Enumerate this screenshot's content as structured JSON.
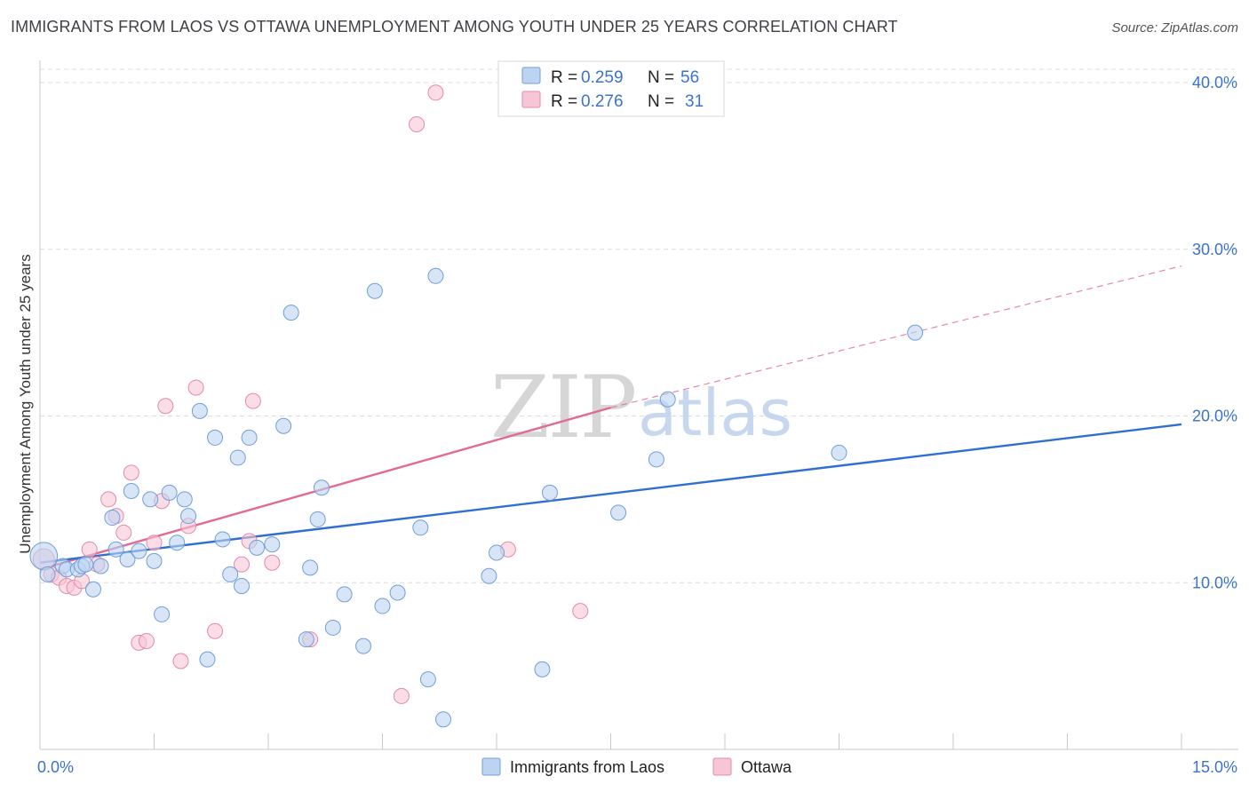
{
  "header": {
    "title": "IMMIGRANTS FROM LAOS VS OTTAWA UNEMPLOYMENT AMONG YOUTH UNDER 25 YEARS CORRELATION CHART",
    "source": "Source: ZipAtlas.com"
  },
  "watermark": {
    "zip": "ZIP",
    "atlas": "atlas"
  },
  "legend": {
    "r_label": "R =",
    "n_label": "N =",
    "series1": {
      "r": "0.259",
      "n": "56"
    },
    "series2": {
      "r": "0.276",
      "n": "31"
    }
  },
  "bottom_legend": {
    "series1": "Immigrants from Laos",
    "series2": "Ottawa"
  },
  "colors": {
    "series1_fill": "#bcd4f2",
    "series1_stroke": "#6f9fd8",
    "series1_line": "#2f6fd0",
    "series2_fill": "#f7c6d6",
    "series2_stroke": "#e58aa8",
    "series2_line": "#e26a93",
    "axis_text": "#3b73c9",
    "grid": "#dcdcdc"
  },
  "chart_data": {
    "type": "scatter",
    "title": "IMMIGRANTS FROM LAOS VS OTTAWA UNEMPLOYMENT AMONG YOUTH UNDER 25 YEARS CORRELATION CHART",
    "xlabel": "",
    "ylabel": "Unemployment Among Youth under 25 years",
    "xlim": [
      0,
      15
    ],
    "ylim": [
      0,
      40.8
    ],
    "x_ticks": [
      0,
      15
    ],
    "x_tick_labels": [
      "0.0%",
      "15.0%"
    ],
    "y_ticks": [
      10,
      20,
      30,
      40
    ],
    "y_tick_labels": [
      "10.0%",
      "20.0%",
      "30.0%",
      "40.0%"
    ],
    "grid": true,
    "legend_position": "top-center",
    "series": [
      {
        "name": "Immigrants from Laos",
        "r": 0.259,
        "n": 56,
        "trend": {
          "x0": 0,
          "y0": 11.2,
          "x1": 15,
          "y1": 19.5
        },
        "points": [
          [
            0.05,
            11.6,
            1.8
          ],
          [
            0.1,
            10.5,
            1
          ],
          [
            0.3,
            11.0,
            1
          ],
          [
            0.35,
            10.8,
            1
          ],
          [
            0.5,
            10.8,
            1
          ],
          [
            0.55,
            11.0,
            1
          ],
          [
            0.6,
            11.1,
            1
          ],
          [
            0.7,
            9.6,
            1
          ],
          [
            0.8,
            11.0,
            1
          ],
          [
            0.95,
            13.9,
            1
          ],
          [
            1.0,
            12.0,
            1
          ],
          [
            1.15,
            11.4,
            1
          ],
          [
            1.2,
            15.5,
            1
          ],
          [
            1.3,
            11.9,
            1
          ],
          [
            1.45,
            15.0,
            1
          ],
          [
            1.5,
            11.3,
            1
          ],
          [
            1.6,
            8.1,
            1
          ],
          [
            1.7,
            15.4,
            1
          ],
          [
            1.8,
            12.4,
            1
          ],
          [
            1.9,
            15.0,
            1
          ],
          [
            1.95,
            14.0,
            1
          ],
          [
            2.1,
            20.3,
            1
          ],
          [
            2.2,
            5.4,
            1
          ],
          [
            2.3,
            18.7,
            1
          ],
          [
            2.4,
            12.6,
            1
          ],
          [
            2.5,
            10.5,
            1
          ],
          [
            2.6,
            17.5,
            1
          ],
          [
            2.65,
            9.8,
            1
          ],
          [
            2.75,
            18.7,
            1
          ],
          [
            2.85,
            12.1,
            1
          ],
          [
            3.05,
            12.3,
            1
          ],
          [
            3.2,
            19.4,
            1
          ],
          [
            3.3,
            26.2,
            1
          ],
          [
            3.5,
            6.6,
            1
          ],
          [
            3.55,
            10.9,
            1
          ],
          [
            3.65,
            13.8,
            1
          ],
          [
            3.7,
            15.7,
            1
          ],
          [
            3.85,
            7.3,
            1
          ],
          [
            4.0,
            9.3,
            1
          ],
          [
            4.25,
            6.2,
            1
          ],
          [
            4.4,
            27.5,
            1
          ],
          [
            4.5,
            8.6,
            1
          ],
          [
            4.7,
            9.4,
            1
          ],
          [
            5.0,
            13.3,
            1
          ],
          [
            5.1,
            4.2,
            1
          ],
          [
            5.2,
            28.4,
            1
          ],
          [
            5.3,
            1.8,
            1
          ],
          [
            5.9,
            10.4,
            1
          ],
          [
            6.0,
            11.8,
            1
          ],
          [
            6.6,
            4.8,
            1
          ],
          [
            6.7,
            15.4,
            1
          ],
          [
            7.6,
            14.2,
            1
          ],
          [
            8.1,
            17.4,
            1
          ],
          [
            8.25,
            21.0,
            1
          ],
          [
            10.5,
            17.8,
            1
          ],
          [
            11.5,
            25.0,
            1
          ]
        ]
      },
      {
        "name": "Ottawa",
        "r": 0.276,
        "n": 31,
        "trend": {
          "x0": 0,
          "y0": 10.8,
          "x1": 7.5,
          "y1": 20.5
        },
        "trend_dashed": {
          "x0": 7.5,
          "y0": 20.5,
          "x1": 15,
          "y1": 29.0
        },
        "points": [
          [
            0.05,
            11.4,
            1.4
          ],
          [
            0.15,
            10.5,
            1
          ],
          [
            0.25,
            10.3,
            1
          ],
          [
            0.35,
            9.8,
            1
          ],
          [
            0.45,
            9.7,
            1
          ],
          [
            0.55,
            10.1,
            1
          ],
          [
            0.65,
            12.0,
            1
          ],
          [
            0.75,
            11.1,
            1
          ],
          [
            0.9,
            15.0,
            1
          ],
          [
            1.0,
            14.0,
            1
          ],
          [
            1.1,
            13.0,
            1
          ],
          [
            1.2,
            16.6,
            1
          ],
          [
            1.3,
            6.4,
            1
          ],
          [
            1.4,
            6.5,
            1
          ],
          [
            1.5,
            12.4,
            1
          ],
          [
            1.6,
            14.9,
            1
          ],
          [
            1.65,
            20.6,
            1
          ],
          [
            1.85,
            5.3,
            1
          ],
          [
            1.95,
            13.4,
            1
          ],
          [
            2.05,
            21.7,
            1
          ],
          [
            2.3,
            7.1,
            1
          ],
          [
            2.65,
            11.1,
            1
          ],
          [
            2.75,
            12.5,
            1
          ],
          [
            2.8,
            20.9,
            1
          ],
          [
            3.05,
            11.2,
            1
          ],
          [
            3.55,
            6.6,
            1
          ],
          [
            4.75,
            3.2,
            1
          ],
          [
            4.95,
            37.5,
            1
          ],
          [
            5.2,
            39.4,
            1
          ],
          [
            6.15,
            12.0,
            1
          ],
          [
            7.1,
            8.3,
            1
          ]
        ]
      }
    ]
  }
}
